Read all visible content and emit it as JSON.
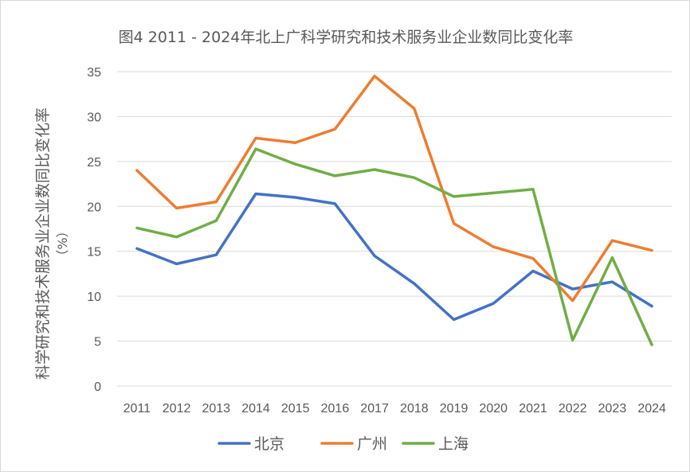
{
  "chart_data": {
    "type": "line",
    "title": "图4 2011 - 2024年北上广科学研究和技术服务业企业数同比变化率",
    "ylabel": "科学研究和技术服务业企业数同比变化率",
    "ylabel_unit": "（%）",
    "xlabel": "",
    "x": [
      "2011",
      "2012",
      "2013",
      "2014",
      "2015",
      "2016",
      "2017",
      "2018",
      "2019",
      "2020",
      "2021",
      "2022",
      "2023",
      "2024"
    ],
    "ylim": [
      0,
      35
    ],
    "yticks": [
      0,
      5,
      10,
      15,
      20,
      25,
      30,
      35
    ],
    "grid": true,
    "legend": "bottom",
    "series": [
      {
        "name": "北京",
        "color": "#4472c4",
        "values": [
          15.3,
          13.6,
          14.6,
          21.4,
          21.0,
          20.3,
          14.5,
          11.4,
          7.4,
          9.2,
          12.8,
          10.8,
          11.6,
          8.9
        ]
      },
      {
        "name": "广州",
        "color": "#ed7d31",
        "values": [
          24.0,
          19.8,
          20.5,
          27.6,
          27.1,
          28.6,
          34.5,
          30.9,
          18.1,
          15.5,
          14.2,
          9.5,
          16.2,
          15.1
        ]
      },
      {
        "name": "上海",
        "color": "#70ad47",
        "values": [
          17.6,
          16.6,
          18.4,
          26.4,
          24.7,
          23.4,
          24.1,
          23.2,
          21.1,
          21.5,
          21.9,
          5.1,
          14.3,
          4.6
        ]
      }
    ]
  }
}
